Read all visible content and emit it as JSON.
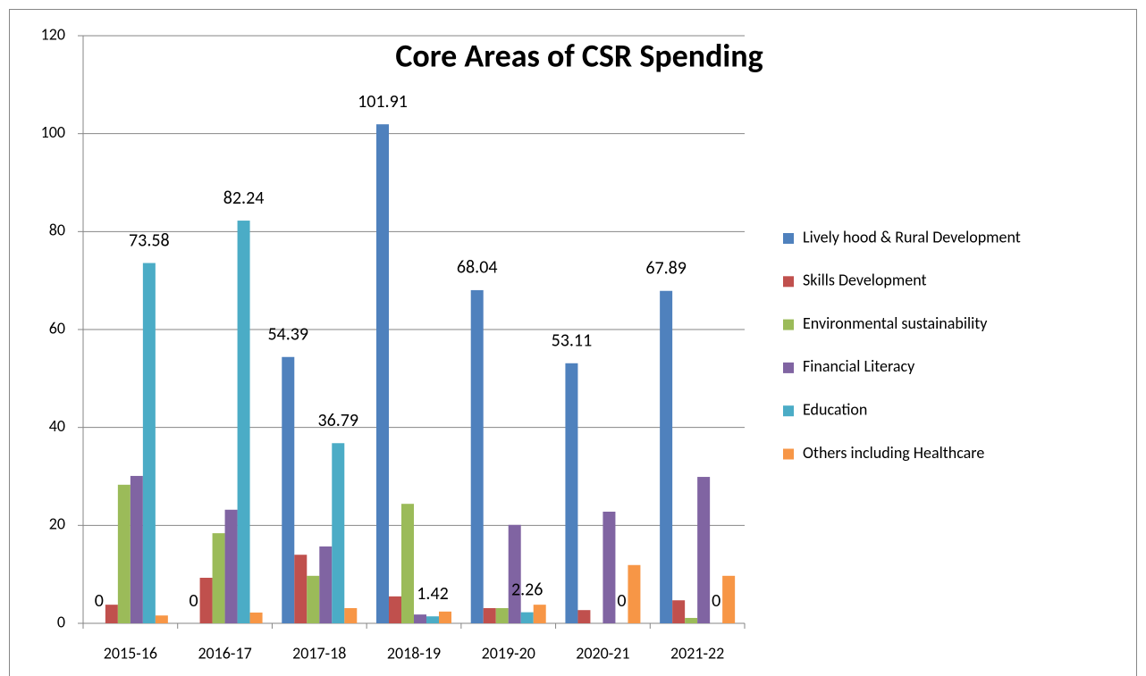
{
  "chart_data": {
    "type": "bar",
    "title": "Core Areas of CSR Spending",
    "categories": [
      "2015-16",
      "2016-17",
      "2017-18",
      "2018-19",
      "2019-20",
      "2020-21",
      "2021-22"
    ],
    "series": [
      {
        "name": "Lively hood & Rural Development",
        "color": "#4f81bd",
        "values": [
          0,
          0,
          54.39,
          101.91,
          68.04,
          53.11,
          67.89
        ],
        "data_labels": true
      },
      {
        "name": "Skills Development",
        "color": "#c0504d",
        "values": [
          3.8,
          9.3,
          14,
          5.5,
          3.1,
          2.7,
          4.7
        ]
      },
      {
        "name": "Environmental sustainability",
        "color": "#9bbb59",
        "values": [
          28.3,
          18.4,
          9.7,
          24.4,
          3.1,
          0,
          1.1
        ]
      },
      {
        "name": "Financial Literacy",
        "color": "#8064a2",
        "values": [
          30.1,
          23.2,
          15.7,
          1.8,
          20.1,
          22.8,
          29.9
        ]
      },
      {
        "name": "Education",
        "color": "#4bacc6",
        "values": [
          73.58,
          82.24,
          36.79,
          1.42,
          2.26,
          0,
          0
        ],
        "data_labels": true
      },
      {
        "name": "Others including Healthcare",
        "color": "#f79646",
        "values": [
          1.6,
          2.2,
          3.1,
          2.4,
          3.8,
          11.9,
          9.7
        ]
      }
    ],
    "ylim": [
      0,
      120
    ],
    "yticks": [
      0,
      20,
      40,
      60,
      80,
      100,
      120
    ],
    "grid": true,
    "legend": "right"
  }
}
